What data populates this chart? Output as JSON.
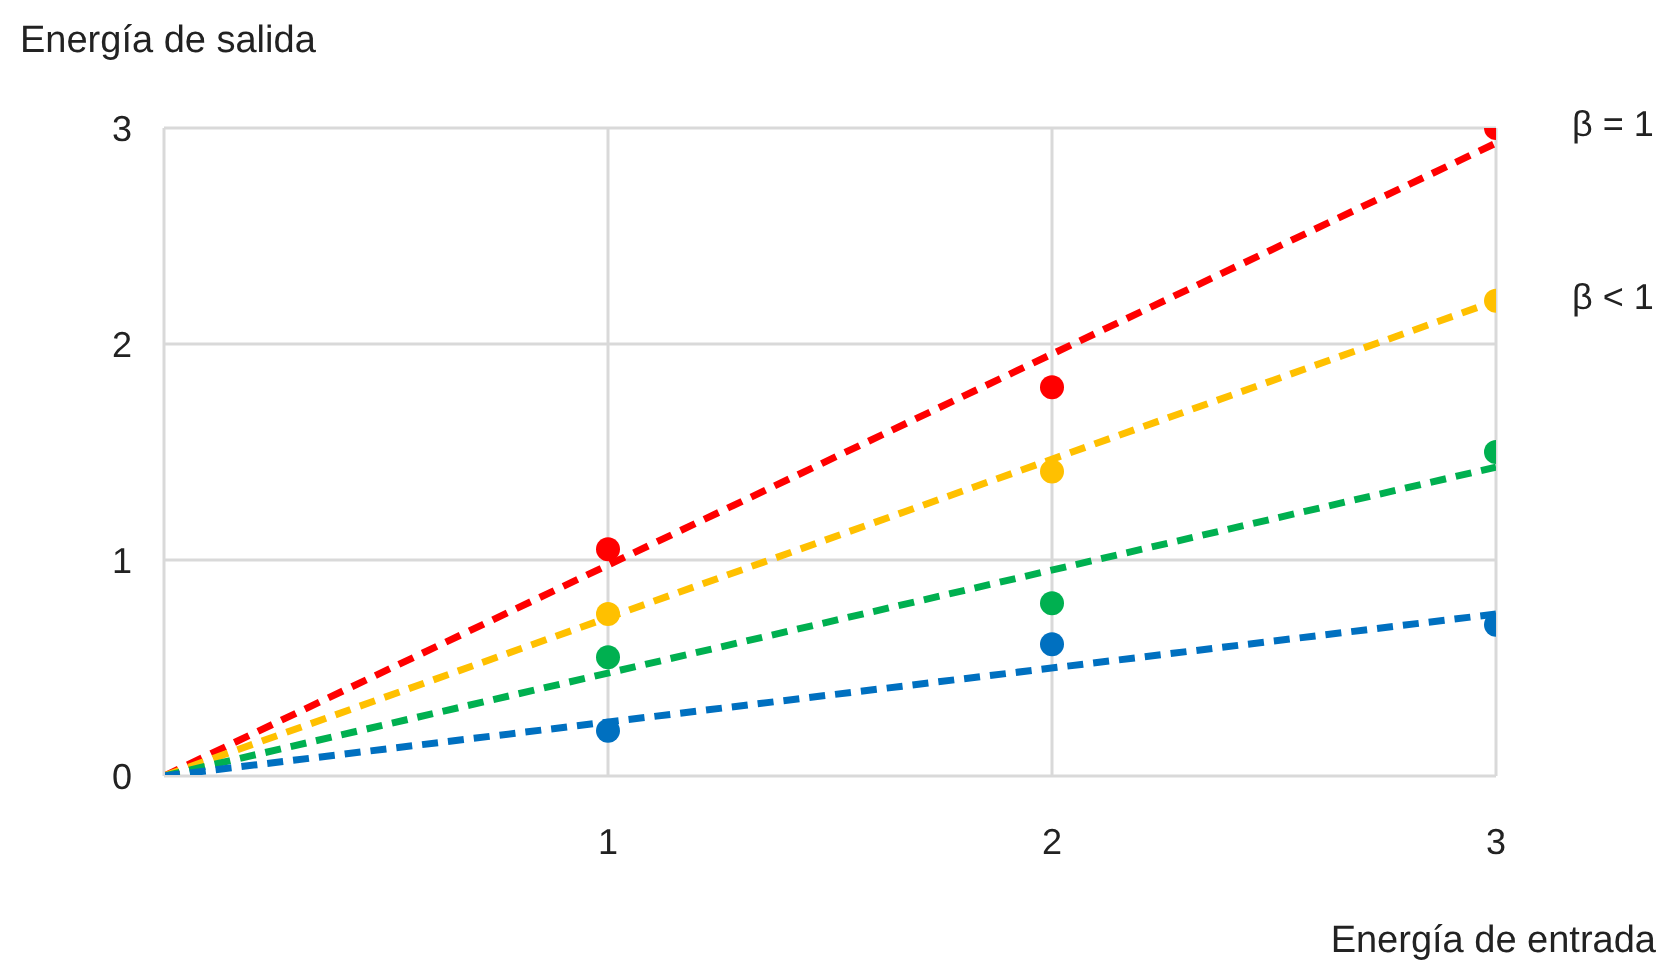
{
  "chart_data": {
    "type": "scatter",
    "xlabel": "Energía de entrada",
    "ylabel": "Energía de salida",
    "xlim": [
      0,
      3
    ],
    "ylim": [
      0,
      3
    ],
    "xticks": [
      {
        "value": 0,
        "label": null
      },
      1,
      2,
      3
    ],
    "yticks": [
      0,
      1,
      2,
      3
    ],
    "grid": true,
    "series": [
      {
        "type": "line",
        "color": "#ff0000",
        "x": [
          0,
          3
        ],
        "values": [
          0,
          2.93
        ],
        "line_style": "dashed",
        "marker": "none"
      },
      {
        "type": "line",
        "color": "#ffc000",
        "x": [
          0,
          3
        ],
        "values": [
          0,
          2.2
        ],
        "line_style": "dashed",
        "marker": "none"
      },
      {
        "type": "line",
        "color": "#00b050",
        "x": [
          0,
          3
        ],
        "values": [
          0,
          1.43
        ],
        "line_style": "dashed",
        "marker": "none"
      },
      {
        "type": "line",
        "color": "#0070c0",
        "x": [
          0,
          3
        ],
        "values": [
          0,
          0.75
        ],
        "line_style": "dashed",
        "marker": "none"
      },
      {
        "color": "#ff0000",
        "x": [
          1,
          2,
          3
        ],
        "values": [
          1.05,
          1.8,
          3.0
        ],
        "marker": "circle"
      },
      {
        "color": "#ffc000",
        "x": [
          1,
          2,
          3
        ],
        "values": [
          0.75,
          1.41,
          2.2
        ],
        "marker": "circle"
      },
      {
        "color": "#00b050",
        "x": [
          1,
          2,
          3
        ],
        "values": [
          0.55,
          0.8,
          1.5
        ],
        "marker": "circle"
      },
      {
        "color": "#0070c0",
        "x": [
          1,
          2,
          3
        ],
        "values": [
          0.21,
          0.61,
          0.7
        ],
        "marker": "circle"
      }
    ],
    "annotations": [
      {
        "text": "β = 1",
        "x": 3,
        "y": 3
      },
      {
        "text": "β < 1",
        "x": 3,
        "y": 2.2
      }
    ]
  }
}
